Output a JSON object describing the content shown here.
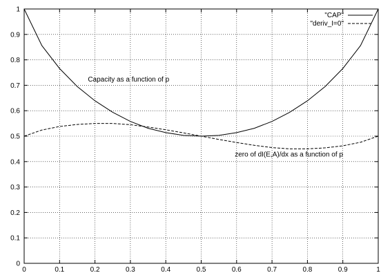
{
  "chart_data": {
    "type": "line",
    "title": "",
    "xlabel": "",
    "ylabel": "",
    "xlim": [
      0,
      1
    ],
    "ylim": [
      0,
      1
    ],
    "grid": true,
    "legend_position": "top-right",
    "x_ticks": [
      "0",
      "0.1",
      "0.2",
      "0.3",
      "0.4",
      "0.5",
      "0.6",
      "0.7",
      "0.8",
      "0.9",
      "1"
    ],
    "y_ticks": [
      "0",
      "0.1",
      "0.2",
      "0.3",
      "0.4",
      "0.5",
      "0.6",
      "0.7",
      "0.8",
      "0.9",
      "1"
    ],
    "series": [
      {
        "name": "\"CAP\"",
        "style": "solid",
        "color": "#000000",
        "x": [
          0,
          0.05,
          0.1,
          0.15,
          0.2,
          0.25,
          0.3,
          0.35,
          0.4,
          0.45,
          0.5,
          0.55,
          0.6,
          0.65,
          0.7,
          0.75,
          0.8,
          0.85,
          0.9,
          0.95,
          1
        ],
        "y": [
          1.0,
          0.856,
          0.766,
          0.695,
          0.639,
          0.594,
          0.558,
          0.531,
          0.514,
          0.503,
          0.5,
          0.503,
          0.514,
          0.531,
          0.558,
          0.594,
          0.639,
          0.695,
          0.766,
          0.856,
          1.0
        ]
      },
      {
        "name": "\"deriv_I=0\"",
        "style": "dashed",
        "color": "#000000",
        "x": [
          0,
          0.05,
          0.1,
          0.15,
          0.2,
          0.25,
          0.3,
          0.35,
          0.4,
          0.45,
          0.5,
          0.55,
          0.6,
          0.65,
          0.7,
          0.75,
          0.8,
          0.85,
          0.9,
          0.95,
          1
        ],
        "y": [
          0.5,
          0.524,
          0.538,
          0.546,
          0.55,
          0.55,
          0.545,
          0.536,
          0.525,
          0.513,
          0.5,
          0.487,
          0.475,
          0.464,
          0.455,
          0.45,
          0.45,
          0.454,
          0.462,
          0.476,
          0.5
        ]
      }
    ],
    "annotations": [
      {
        "text": "Capacity as a function of p",
        "x": 0.18,
        "y": 0.715
      },
      {
        "text": "zero of dI(E,A)/dx as a function of p",
        "x": 0.595,
        "y": 0.42
      }
    ]
  }
}
